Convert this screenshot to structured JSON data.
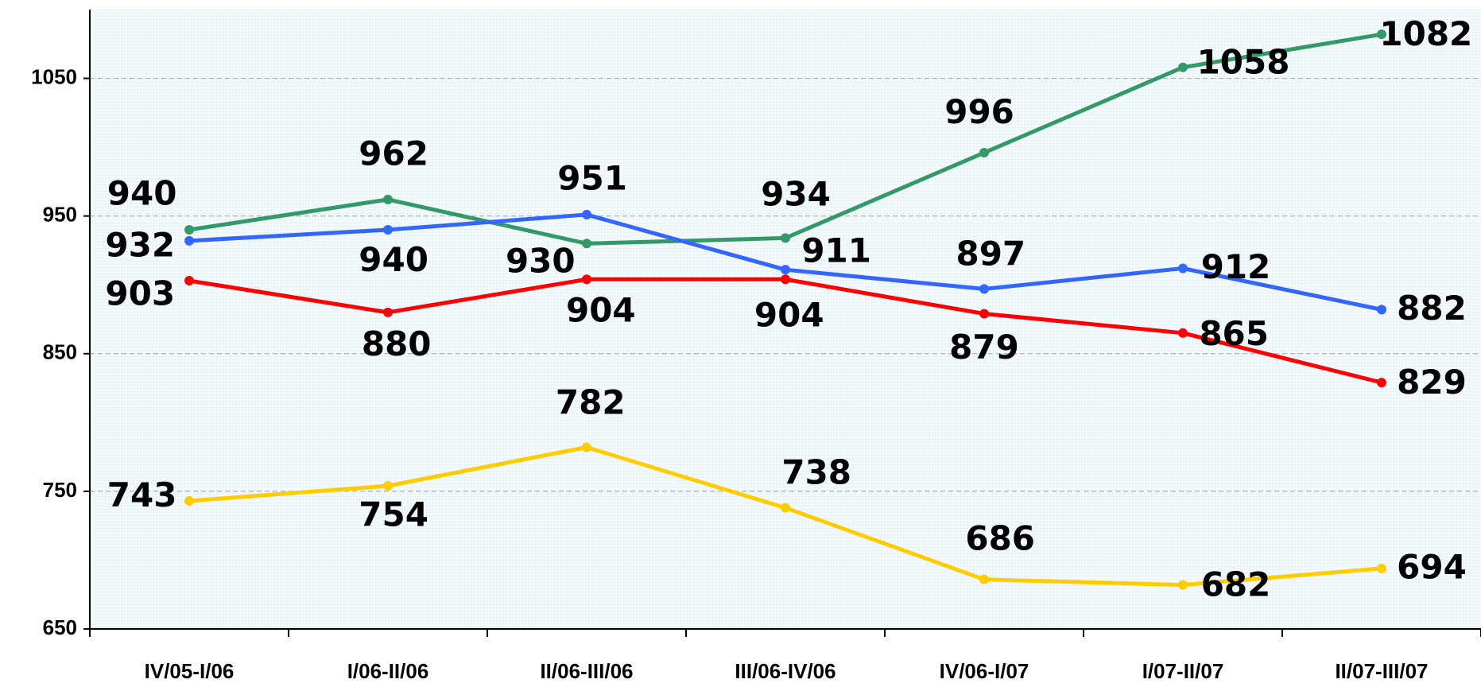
{
  "chart_data": {
    "type": "line",
    "categories": [
      "IV/05-I/06",
      "I/06-II/06",
      "II/06-III/06",
      "III/06-IV/06",
      "IV/06-I/07",
      "I/07-II/07",
      "II/07-III/07"
    ],
    "series": [
      {
        "color": "#339966",
        "values": [
          940,
          962,
          930,
          934,
          996,
          1058,
          1082
        ]
      },
      {
        "color": "#3366ff",
        "values": [
          932,
          940,
          951,
          911,
          897,
          912,
          882
        ]
      },
      {
        "color": "#ff0000",
        "values": [
          903,
          880,
          904,
          904,
          879,
          865,
          829
        ]
      },
      {
        "color": "#ffcc00",
        "values": [
          743,
          754,
          782,
          738,
          686,
          682,
          694
        ]
      }
    ],
    "ylim": [
      650,
      1100
    ],
    "yticks": [
      650,
      750,
      850,
      950,
      1050
    ],
    "grid": true
  }
}
